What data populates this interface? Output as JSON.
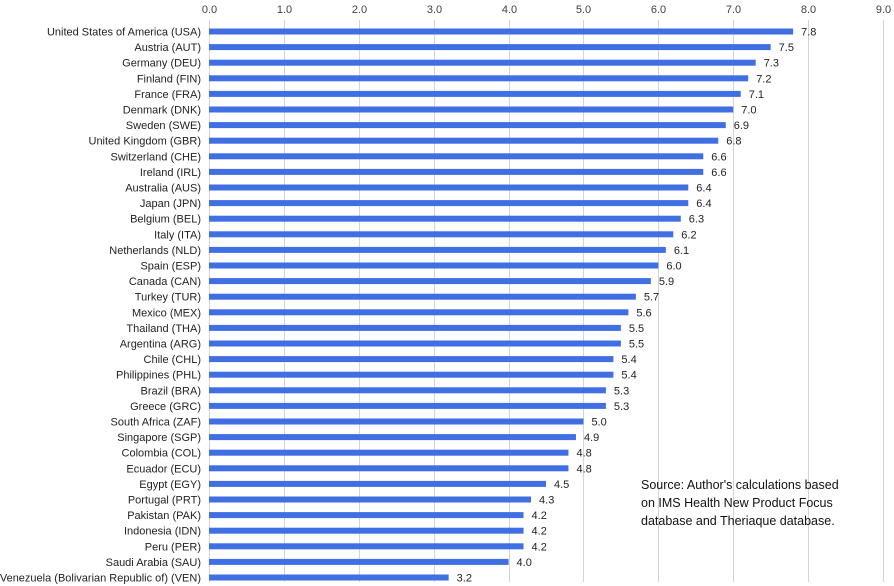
{
  "chart_data": {
    "type": "bar",
    "orientation": "horizontal",
    "categories": [
      "United States of America (USA)",
      "Austria (AUT)",
      "Germany (DEU)",
      "Finland (FIN)",
      "France (FRA)",
      "Denmark (DNK)",
      "Sweden (SWE)",
      "United Kingdom (GBR)",
      "Switzerland (CHE)",
      "Ireland (IRL)",
      "Australia (AUS)",
      "Japan (JPN)",
      "Belgium (BEL)",
      "Italy (ITA)",
      "Netherlands (NLD)",
      "Spain (ESP)",
      "Canada (CAN)",
      "Turkey (TUR)",
      "Mexico (MEX)",
      "Thailand (THA)",
      "Argentina (ARG)",
      "Chile (CHL)",
      "Philippines (PHL)",
      "Brazil (BRA)",
      "Greece (GRC)",
      "South Africa (ZAF)",
      "Singapore (SGP)",
      "Colombia (COL)",
      "Ecuador (ECU)",
      "Egypt (EGY)",
      "Portugal (PRT)",
      "Pakistan (PAK)",
      "Indonesia (IDN)",
      "Peru (PER)",
      "Saudi Arabia (SAU)",
      "Venezuela (Bolivarian Republic of) (VEN)"
    ],
    "values": [
      7.8,
      7.5,
      7.3,
      7.2,
      7.1,
      7.0,
      6.9,
      6.8,
      6.6,
      6.6,
      6.4,
      6.4,
      6.3,
      6.2,
      6.1,
      6.0,
      5.9,
      5.7,
      5.6,
      5.5,
      5.5,
      5.4,
      5.4,
      5.3,
      5.3,
      5.0,
      4.9,
      4.8,
      4.8,
      4.5,
      4.3,
      4.2,
      4.2,
      4.2,
      4.0,
      3.2
    ],
    "value_labels": [
      "7.8",
      "7.5",
      "7.3",
      "7.2",
      "7.1",
      "7.0",
      "6.9",
      "6.8",
      "6.6",
      "6.6",
      "6.4",
      "6.4",
      "6.3",
      "6.2",
      "6.1",
      "6.0",
      "5.9",
      "5.7",
      "5.6",
      "5.5",
      "5.5",
      "5.4",
      "5.4",
      "5.3",
      "5.3",
      "5.0",
      "4.9",
      "4.8",
      "4.8",
      "4.5",
      "4.3",
      "4.2",
      "4.2",
      "4.2",
      "4.0",
      "3.2"
    ],
    "xlim": [
      0,
      9
    ],
    "x_ticks": [
      "0.0",
      "1.0",
      "2.0",
      "3.0",
      "4.0",
      "5.0",
      "6.0",
      "7.0",
      "8.0",
      "9.0"
    ],
    "x_axis_position": "top",
    "grid": true,
    "bar_color": "#3f6fe3",
    "source_note": [
      "Source: Author's calculations based",
      "on IMS Health New Product Focus",
      "database and Theriaque database."
    ]
  }
}
